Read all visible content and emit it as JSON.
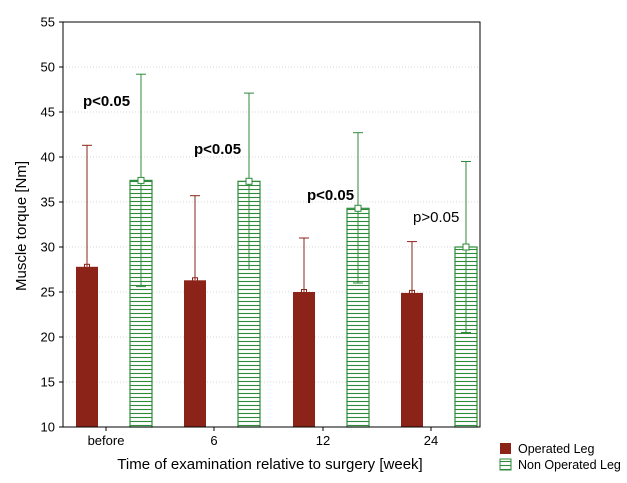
{
  "colors": {
    "operated": "#8b2318",
    "non_operated_fill": "#ffffff",
    "non_operated_line": "#2e8b3a",
    "axis": "#000000",
    "grid": "#b5b5b5"
  },
  "chart_data": {
    "type": "bar",
    "xlabel": "Time of examination relative to surgery [week]",
    "ylabel": "Muscle torque [Nm]",
    "ylim": [
      10,
      55
    ],
    "yticks": [
      "10",
      "15",
      "20",
      "25",
      "30",
      "35",
      "40",
      "45",
      "50",
      "55"
    ],
    "categories": [
      "before",
      "6",
      "12",
      "24"
    ],
    "grid": true,
    "legend_position": "bottom-right, outside plot",
    "series": [
      {
        "name": "Operated Leg",
        "values": [
          27.8,
          26.3,
          25.0,
          24.9
        ],
        "error_upper": [
          41.3,
          35.7,
          31.0,
          30.6
        ]
      },
      {
        "name": "Non Operated Leg",
        "values": [
          37.4,
          37.3,
          34.3,
          30.0
        ],
        "error_upper": [
          49.2,
          47.1,
          42.7,
          39.5
        ],
        "error_lower": [
          25.6,
          27.5,
          26.0,
          20.5
        ]
      }
    ],
    "annotations": [
      {
        "text": "p<0.05",
        "bold": true
      },
      {
        "text": "p<0.05",
        "bold": true
      },
      {
        "text": "p<0.05",
        "bold": true
      },
      {
        "text": "p>0.05",
        "bold": false
      }
    ]
  }
}
